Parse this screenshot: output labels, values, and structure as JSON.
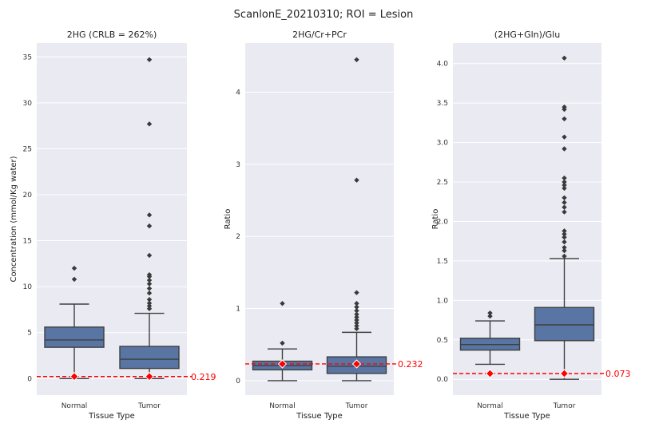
{
  "chart_data": {
    "title": "ScanlonE_20210310; ROI = Lesion",
    "type": "box",
    "panels": [
      {
        "title": "2HG (CRLB = 262%)",
        "xlabel": "Tissue Type",
        "ylabel": "Concentration (mmol/Kg water)",
        "ylim": [
          -1.8,
          36.5
        ],
        "yticks": [
          0,
          5,
          10,
          15,
          20,
          25,
          30,
          35
        ],
        "ytick_labels": [
          "0",
          "5",
          "10",
          "15",
          "20",
          "25",
          "30",
          "35"
        ],
        "categories": [
          "Normal",
          "Tumor"
        ],
        "boxes": [
          {
            "category": "Normal",
            "q1": 3.4,
            "median": 4.2,
            "q3": 5.6,
            "whisker_low": 0.0,
            "whisker_high": 8.1,
            "outliers": [
              10.8,
              12.0
            ]
          },
          {
            "category": "Tumor",
            "q1": 1.1,
            "median": 2.1,
            "q3": 3.5,
            "whisker_low": 0.0,
            "whisker_high": 7.1,
            "outliers": [
              7.6,
              7.9,
              8.2,
              8.6,
              9.3,
              9.8,
              10.3,
              10.7,
              11.1,
              11.3,
              13.4,
              16.6,
              17.8,
              27.7,
              34.7
            ]
          }
        ],
        "markers": [
          0.219,
          0.219
        ],
        "reference_line": 0.219,
        "reference_label": "0.219"
      },
      {
        "title": "2HG/Cr+PCr",
        "xlabel": "Tissue Type",
        "ylabel": "Ratio",
        "ylim": [
          -0.2,
          4.68
        ],
        "yticks": [
          0,
          1,
          2,
          3,
          4
        ],
        "ytick_labels": [
          "0",
          "1",
          "2",
          "3",
          "4"
        ],
        "categories": [
          "Normal",
          "Tumor"
        ],
        "boxes": [
          {
            "category": "Normal",
            "q1": 0.15,
            "median": 0.21,
            "q3": 0.27,
            "whisker_low": 0.0,
            "whisker_high": 0.44,
            "outliers": [
              0.52,
              1.07
            ]
          },
          {
            "category": "Tumor",
            "q1": 0.1,
            "median": 0.2,
            "q3": 0.33,
            "whisker_low": 0.0,
            "whisker_high": 0.67,
            "outliers": [
              0.72,
              0.76,
              0.8,
              0.84,
              0.88,
              0.92,
              0.97,
              1.02,
              1.07,
              1.22,
              2.78,
              4.45
            ]
          }
        ],
        "markers": [
          0.232,
          0.232
        ],
        "reference_line": 0.232,
        "reference_label": "0.232"
      },
      {
        "title": "(2HG+Gln)/Glu",
        "xlabel": "Tissue Type",
        "ylabel": "Ratio",
        "ylim": [
          -0.2,
          4.26
        ],
        "yticks": [
          0,
          0.5,
          1.0,
          1.5,
          2.0,
          2.5,
          3.0,
          3.5,
          4.0
        ],
        "ytick_labels": [
          "0.0",
          "0.5",
          "1.0",
          "1.5",
          "2.0",
          "2.5",
          "3.0",
          "3.5",
          "4.0"
        ],
        "categories": [
          "Normal",
          "Tumor"
        ],
        "boxes": [
          {
            "category": "Normal",
            "q1": 0.37,
            "median": 0.44,
            "q3": 0.52,
            "whisker_low": 0.19,
            "whisker_high": 0.74,
            "outliers": [
              0.8,
              0.84
            ]
          },
          {
            "category": "Tumor",
            "q1": 0.49,
            "median": 0.69,
            "q3": 0.91,
            "whisker_low": 0.0,
            "whisker_high": 1.53,
            "outliers": [
              1.56,
              1.63,
              1.67,
              1.74,
              1.8,
              1.84,
              1.88,
              2.12,
              2.18,
              2.24,
              2.3,
              2.42,
              2.46,
              2.5,
              2.55,
              2.92,
              3.07,
              3.3,
              3.42,
              3.45,
              4.07
            ]
          }
        ],
        "markers": [
          0.073,
          0.073
        ],
        "reference_line": 0.073,
        "reference_label": "0.073"
      }
    ]
  },
  "colors": {
    "plot_background": "#eaeaf2",
    "grid": "#ffffff",
    "box_fill": "#5875a4",
    "box_edge": "#3f3f3f",
    "reference_line": "#ff0000",
    "marker": "#ff0000"
  }
}
